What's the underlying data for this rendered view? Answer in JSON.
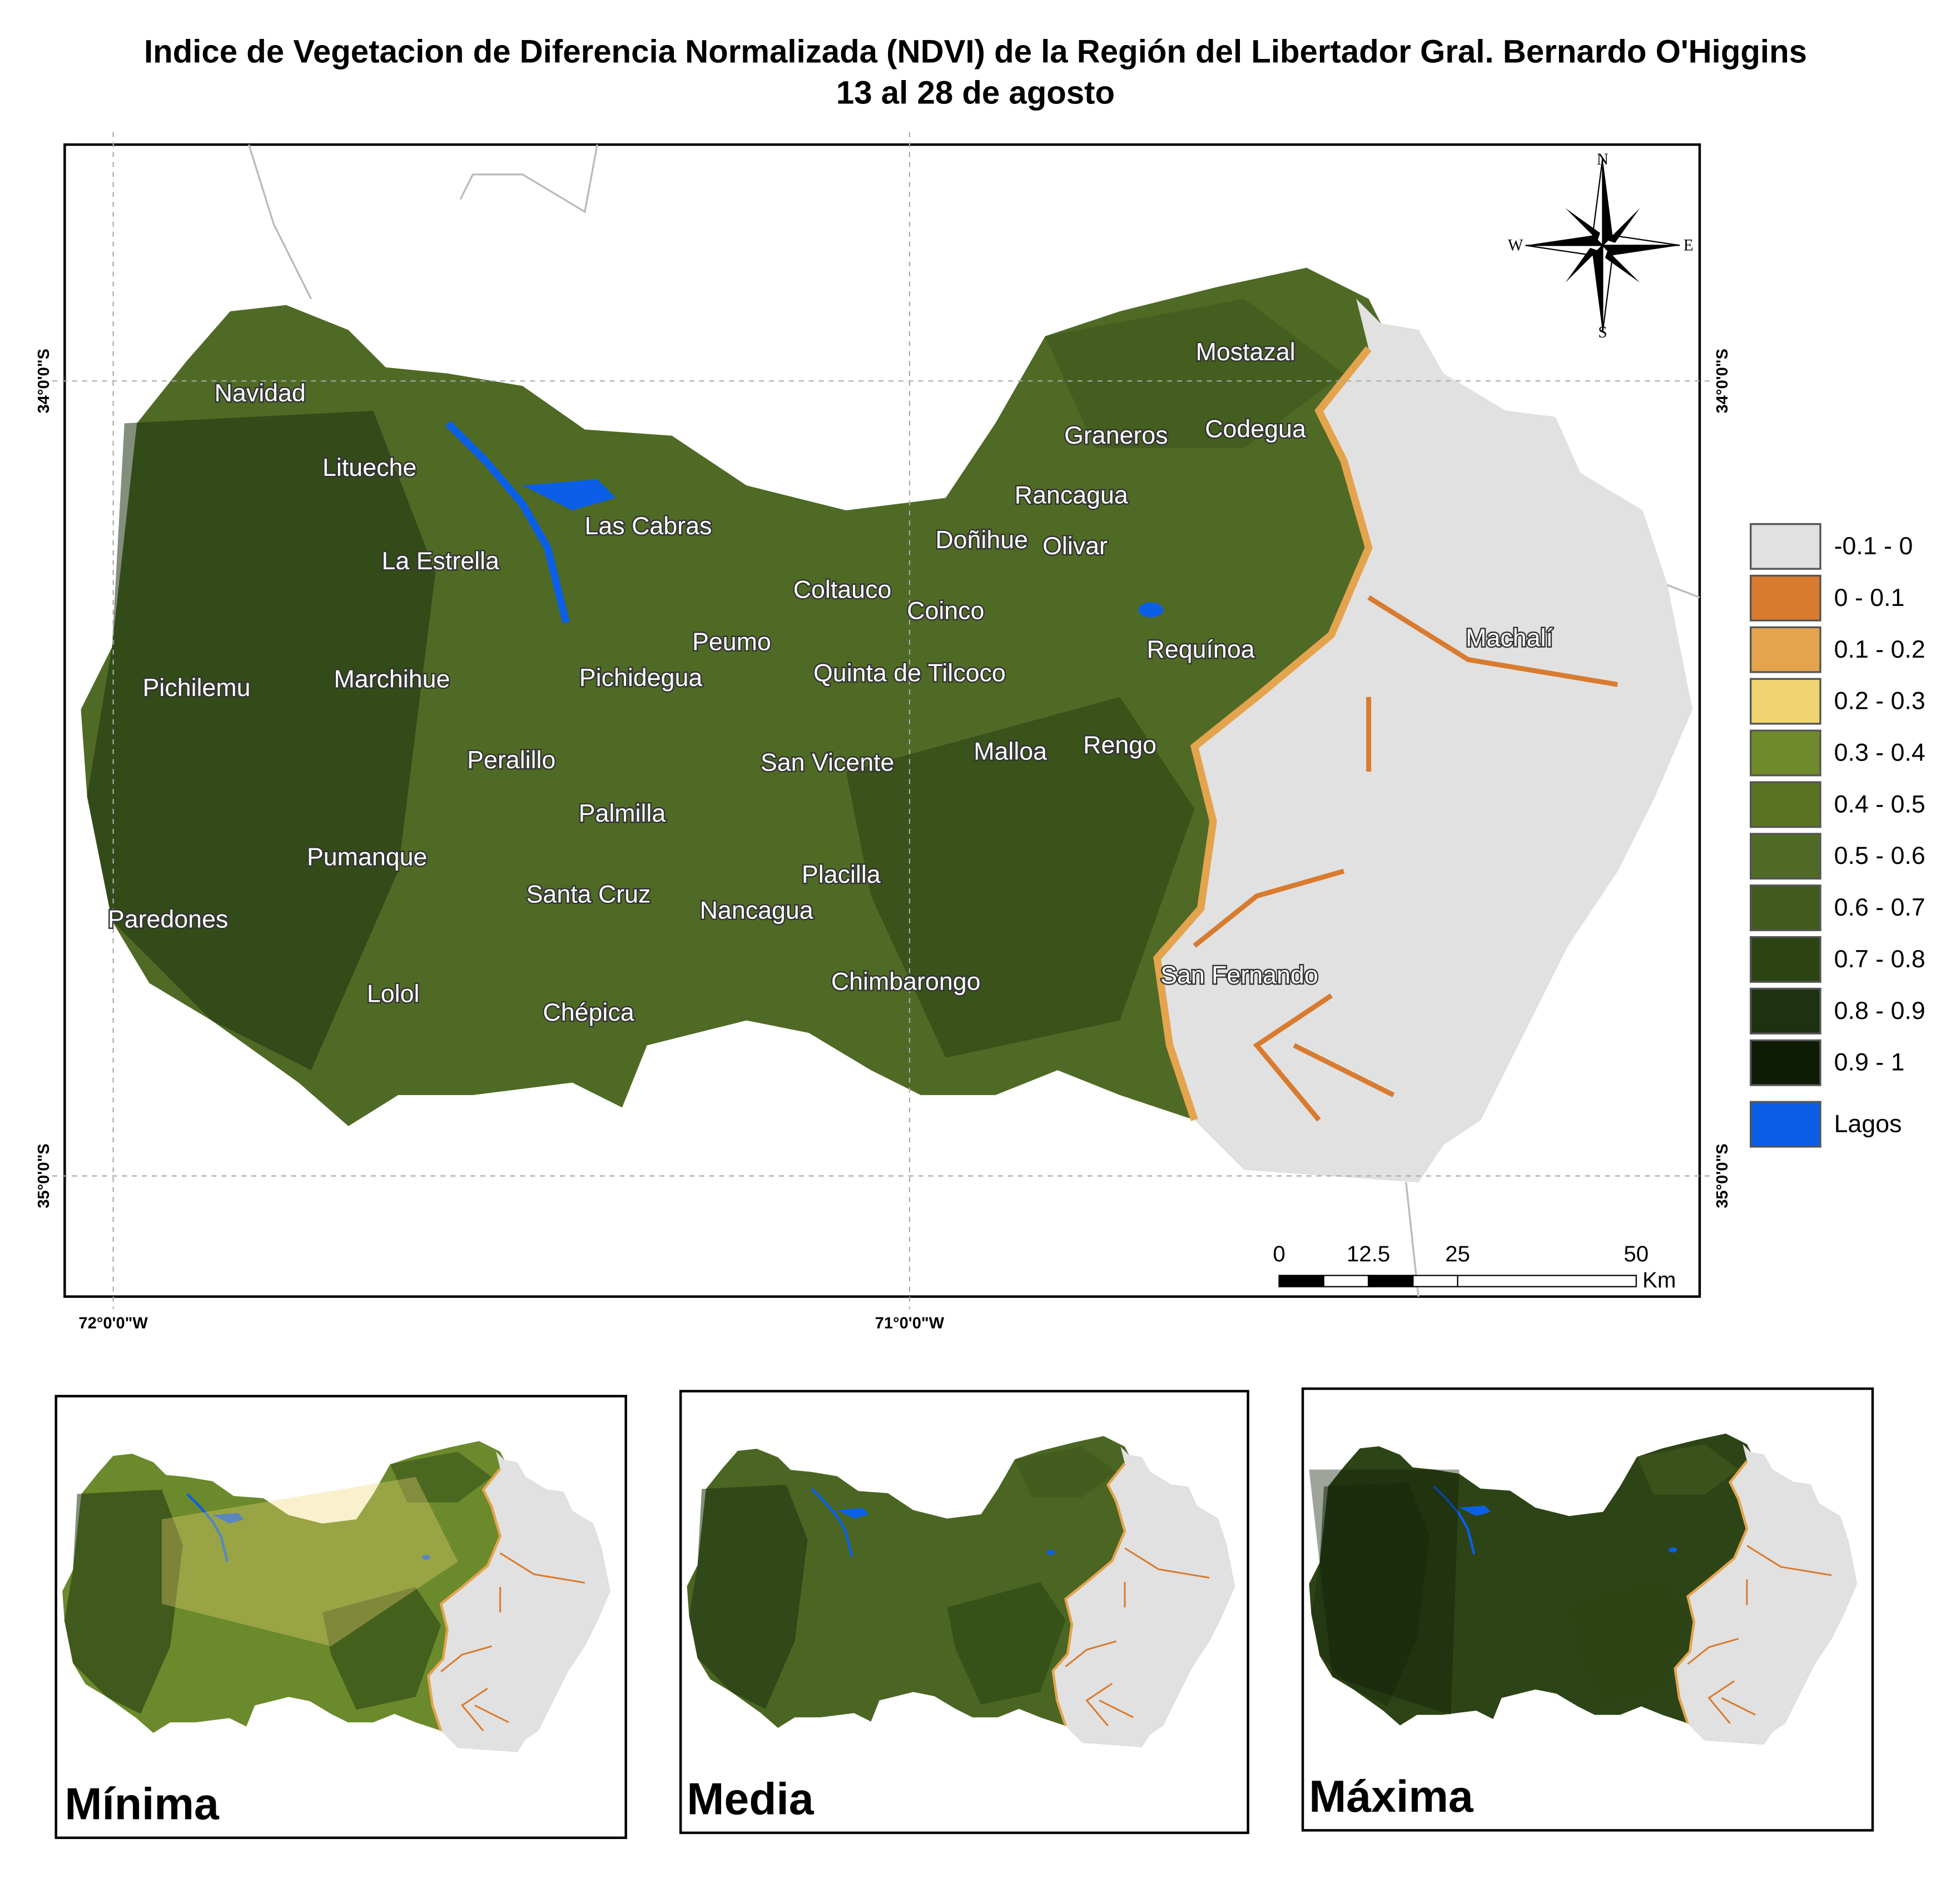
{
  "title": {
    "line1": "Indice de Vegetacion de Diferencia Normalizada (NDVI) de la Región del Libertador Gral. Bernardo O'Higgins",
    "line2": "13 al 28 de agosto"
  },
  "places": [
    "Navidad",
    "Litueche",
    "Las Cabras",
    "La Estrella",
    "Coltauco",
    "Coinco",
    "Doñihue",
    "Olivar",
    "Rancagua",
    "Graneros",
    "Codegua",
    "Mostazal",
    "Peumo",
    "Requínoa",
    "Machalí",
    "Pichilemu",
    "Marchihue",
    "Pichidegua",
    "Quinta de Tilcoco",
    "Peralillo",
    "San Vicente",
    "Malloa",
    "Rengo",
    "Palmilla",
    "Pumanque",
    "Placilla",
    "Santa Cruz",
    "Nancagua",
    "Paredones",
    "Chimbarongo",
    "San Fernando",
    "Lolol",
    "Chépica"
  ],
  "legend": [
    {
      "label": "-0.1 - 0",
      "color": "#e1e1e1"
    },
    {
      "label": "0 - 0.1",
      "color": "#d97b2f"
    },
    {
      "label": "0.1 - 0.2",
      "color": "#e4a44e"
    },
    {
      "label": "0.2 - 0.3",
      "color": "#f0d472"
    },
    {
      "label": "0.3 - 0.4",
      "color": "#6e8a2a"
    },
    {
      "label": "0.4 - 0.5",
      "color": "#5a7424"
    },
    {
      "label": "0.5 - 0.6",
      "color": "#4f6a25"
    },
    {
      "label": "0.6 - 0.7",
      "color": "#3f5a1c"
    },
    {
      "label": "0.7 - 0.8",
      "color": "#2c4414"
    },
    {
      "label": "0.8 - 0.9",
      "color": "#1e3110"
    },
    {
      "label": "0.9 - 1",
      "color": "#0e1c06"
    },
    {
      "label": "Lagos",
      "color": "#0a5fe6"
    }
  ],
  "graticule": {
    "lat": [
      "34°0'0\"S",
      "35°0'0\"S"
    ],
    "lon": [
      "72°0'0\"W",
      "71°0'0\"W"
    ]
  },
  "scale_bar": {
    "ticks": [
      0,
      12.5,
      25,
      50
    ],
    "unit": "Km"
  },
  "compass": {
    "n": "N",
    "s": "S",
    "e": "E",
    "w": "W"
  },
  "panels": [
    "Mínima",
    "Media",
    "Máxima"
  ]
}
